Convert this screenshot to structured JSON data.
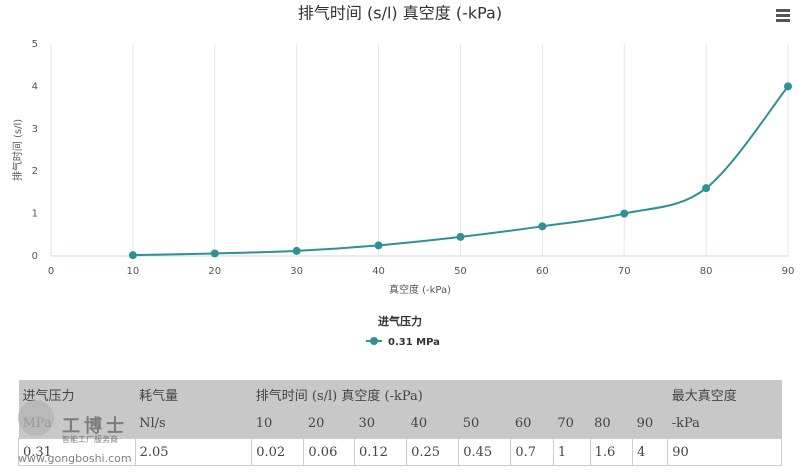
{
  "chart_data": {
    "type": "line",
    "title": "排气时间 (s/l) 真空度 (-kPa)",
    "x_label": "真空度 (-kPa)",
    "y_label": "排气时间 (s/l)",
    "x": [
      10,
      20,
      30,
      40,
      50,
      60,
      70,
      80,
      90
    ],
    "series": [
      {
        "name": "0.31 MPa",
        "color": "#2f9193",
        "values": [
          0.02,
          0.06,
          0.12,
          0.25,
          0.45,
          0.7,
          1,
          1.6,
          4
        ]
      }
    ],
    "legend_title": "进气压力",
    "xlim": [
      0,
      90
    ],
    "xticks": [
      0,
      10,
      20,
      30,
      40,
      50,
      60,
      70,
      80,
      90
    ],
    "ylim": [
      0,
      5
    ],
    "yticks": [
      0,
      1,
      2,
      3,
      4,
      5
    ],
    "grid": "x"
  },
  "table": {
    "header_row1": [
      "进气压力",
      "耗气量",
      "排气时间 (s/l) 真空度 (-kPa)",
      "最大真空度"
    ],
    "header_row2": [
      "MPa",
      "Nl/s",
      "10",
      "20",
      "30",
      "40",
      "50",
      "60",
      "70",
      "80",
      "90",
      "-kPa"
    ],
    "rows": [
      [
        "0.31",
        "2.05",
        "0.02",
        "0.06",
        "0.12",
        "0.25",
        "0.45",
        "0.7",
        "1",
        "1.6",
        "4",
        "90"
      ]
    ]
  },
  "watermark": {
    "brand": "工博士",
    "slogan": "智能工厂服务商",
    "url": "www.gongboshi.com"
  }
}
